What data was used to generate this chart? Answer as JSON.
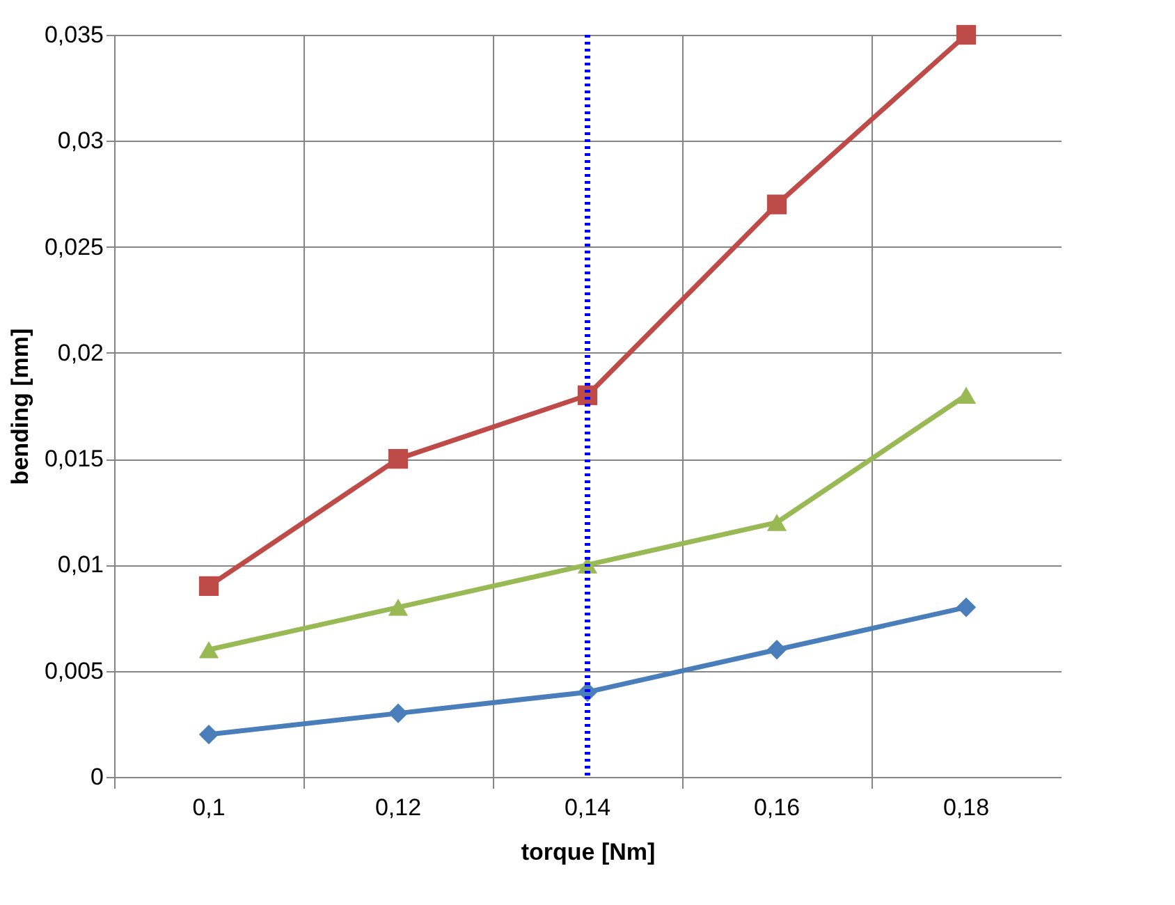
{
  "chart_data": {
    "type": "line",
    "xlabel": "torque [Nm]",
    "ylabel": "bending [mm]",
    "categories": [
      "0,1",
      "0,12",
      "0,14",
      "0,16",
      "0,18"
    ],
    "series": [
      {
        "color": "#4a7ebb",
        "marker": "diamond",
        "values": [
          0.002,
          0.003,
          0.004,
          0.006,
          0.008
        ]
      },
      {
        "color": "#be4b48",
        "marker": "square",
        "values": [
          0.009,
          0.015,
          0.018,
          0.027,
          0.035
        ]
      },
      {
        "color": "#98b954",
        "marker": "triangle",
        "values": [
          0.006,
          0.008,
          0.01,
          0.012,
          0.018
        ]
      }
    ],
    "ylim": [
      0,
      0.035
    ],
    "yticks": [
      {
        "value": 0,
        "label": "0"
      },
      {
        "value": 0.005,
        "label": "0,005"
      },
      {
        "value": 0.01,
        "label": "0,01"
      },
      {
        "value": 0.015,
        "label": "0,015"
      },
      {
        "value": 0.02,
        "label": "0,02"
      },
      {
        "value": 0.025,
        "label": "0,025"
      },
      {
        "value": 0.03,
        "label": "0,03"
      },
      {
        "value": 0.035,
        "label": "0,035"
      }
    ],
    "ref_lines": [
      {
        "axis": "x",
        "value": "0,14",
        "color": "#0000ff",
        "line_style": "dotted"
      }
    ],
    "grid": true,
    "line_style": "solid"
  }
}
